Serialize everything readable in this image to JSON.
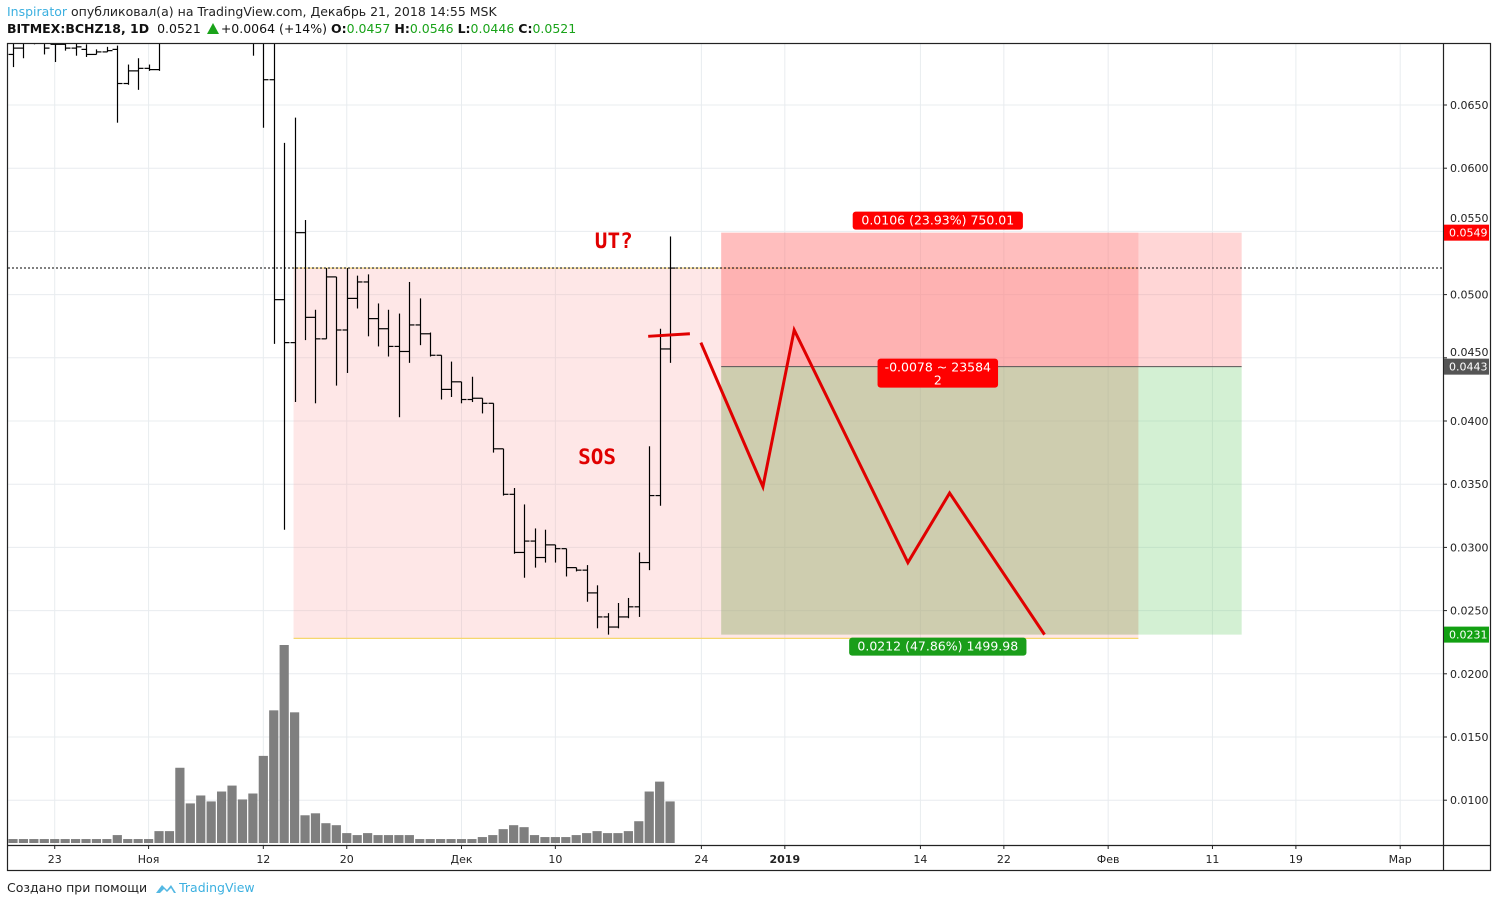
{
  "header": {
    "user": "Inspirator",
    "published_text": "опубликовал(а) на TradingView.com, Декабрь 21, 2018 14:55 MSK",
    "symbol": "BITMEX:BCHZ18, 1D",
    "last": "0.0521",
    "change": "+0.0064 (+14%)",
    "o_label": "O:",
    "o": "0.0457",
    "h_label": "H:",
    "h": "0.0546",
    "l_label": "L:",
    "l": "0.0446",
    "c_label": "C:",
    "c": "0.0521"
  },
  "footer": {
    "created_with": "Создано при помощи",
    "brand": "TradingView"
  },
  "colors": {
    "up": "#1aa31a",
    "loss": "#ff0000",
    "profit": "#1a9e1a",
    "bars": "#000000",
    "volume": "#7f7f7f",
    "drawing": "#e00000"
  },
  "chart_data": {
    "type": "ohlc",
    "interval": "1D",
    "ylim": [
      0.0058,
      0.0699
    ],
    "grid": true,
    "y_ticks": [
      "0.0650",
      "0.0600",
      "0.0550",
      "0.0500",
      "0.0450",
      "0.0400",
      "0.0350",
      "0.0300",
      "0.0250",
      "0.0200",
      "0.0150",
      "0.0100"
    ],
    "x_ticks": [
      {
        "label": "23",
        "day": 4
      },
      {
        "label": "Ноя",
        "day": 13
      },
      {
        "label": "12",
        "day": 24
      },
      {
        "label": "20",
        "day": 32
      },
      {
        "label": "Дек",
        "day": 43
      },
      {
        "label": "10",
        "day": 52
      },
      {
        "label": "24",
        "day": 66
      },
      {
        "label": "2019",
        "day": 74,
        "bold": true
      },
      {
        "label": "14",
        "day": 87
      },
      {
        "label": "22",
        "day": 95
      },
      {
        "label": "Фев",
        "day": 105
      },
      {
        "label": "11",
        "day": 115
      },
      {
        "label": "19",
        "day": 123
      },
      {
        "label": "Мар",
        "day": 133
      }
    ],
    "ohlc": [
      [
        0.069,
        0.0705,
        0.068,
        0.0695
      ],
      [
        0.0695,
        0.0705,
        0.0687,
        0.07
      ],
      [
        0.07,
        0.0702,
        0.0698,
        0.07
      ],
      [
        0.07,
        0.0705,
        0.069,
        0.0695
      ],
      [
        0.0698,
        0.0702,
        0.0684,
        0.0698
      ],
      [
        0.0698,
        0.07,
        0.0693,
        0.0695
      ],
      [
        0.0695,
        0.0699,
        0.0689,
        0.0696
      ],
      [
        0.0694,
        0.0698,
        0.0688,
        0.069
      ],
      [
        0.069,
        0.0694,
        0.069,
        0.0692
      ],
      [
        0.0692,
        0.0696,
        0.0692,
        0.0693
      ],
      [
        0.0694,
        0.0697,
        0.0636,
        0.0667
      ],
      [
        0.0667,
        0.0682,
        0.0666,
        0.0677
      ],
      [
        0.0677,
        0.0687,
        0.0662,
        0.0679
      ],
      [
        0.0679,
        0.0682,
        0.0677,
        0.0678
      ],
      [
        0.0678,
        0.0712,
        0.0677,
        0.0705
      ],
      [
        0.0705,
        0.0725,
        0.07,
        0.0718
      ],
      [
        0.0718,
        0.0735,
        0.071,
        0.0722
      ],
      [
        0.0722,
        0.073,
        0.0712,
        0.0716
      ],
      [
        0.0716,
        0.0728,
        0.0708,
        0.072
      ],
      [
        0.072,
        0.074,
        0.0715,
        0.073
      ],
      [
        0.073,
        0.0738,
        0.0712,
        0.0718
      ],
      [
        0.0718,
        0.0726,
        0.0705,
        0.0712
      ],
      [
        0.0712,
        0.0724,
        0.0702,
        0.0715
      ],
      [
        0.0715,
        0.072,
        0.0689,
        0.0712
      ],
      [
        0.0712,
        0.072,
        0.0632,
        0.067
      ],
      [
        0.067,
        0.0705,
        0.0461,
        0.0496
      ],
      [
        0.0496,
        0.062,
        0.0314,
        0.0462
      ],
      [
        0.0462,
        0.064,
        0.0415,
        0.0549
      ],
      [
        0.0549,
        0.0559,
        0.0464,
        0.0482
      ],
      [
        0.0482,
        0.0488,
        0.0414,
        0.0465
      ],
      [
        0.0465,
        0.0521,
        0.0465,
        0.0514
      ],
      [
        0.0514,
        0.0514,
        0.0428,
        0.0472
      ],
      [
        0.0472,
        0.0521,
        0.0438,
        0.0497
      ],
      [
        0.0497,
        0.0515,
        0.0489,
        0.051
      ],
      [
        0.051,
        0.0516,
        0.0467,
        0.0481
      ],
      [
        0.0481,
        0.0493,
        0.0459,
        0.0473
      ],
      [
        0.0473,
        0.0488,
        0.0451,
        0.0459
      ],
      [
        0.0459,
        0.0485,
        0.0403,
        0.0455
      ],
      [
        0.0455,
        0.051,
        0.0446,
        0.0476
      ],
      [
        0.0476,
        0.0497,
        0.046,
        0.0469
      ],
      [
        0.0469,
        0.047,
        0.0451,
        0.0452
      ],
      [
        0.0452,
        0.0452,
        0.0417,
        0.0425
      ],
      [
        0.0425,
        0.0447,
        0.0419,
        0.0431
      ],
      [
        0.0431,
        0.0431,
        0.0414,
        0.0417
      ],
      [
        0.0417,
        0.0435,
        0.0415,
        0.0418
      ],
      [
        0.0418,
        0.0418,
        0.0406,
        0.0414
      ],
      [
        0.0414,
        0.0414,
        0.0375,
        0.0378
      ],
      [
        0.0378,
        0.0378,
        0.0341,
        0.0342
      ],
      [
        0.0342,
        0.0347,
        0.0295,
        0.0296
      ],
      [
        0.0296,
        0.0334,
        0.0276,
        0.0305
      ],
      [
        0.0305,
        0.0315,
        0.0284,
        0.0292
      ],
      [
        0.0292,
        0.0314,
        0.0288,
        0.0302
      ],
      [
        0.0302,
        0.0302,
        0.0288,
        0.0299
      ],
      [
        0.0299,
        0.0299,
        0.0277,
        0.0284
      ],
      [
        0.0284,
        0.0284,
        0.0281,
        0.0282
      ],
      [
        0.0282,
        0.0286,
        0.0257,
        0.0264
      ],
      [
        0.0264,
        0.027,
        0.0236,
        0.0245
      ],
      [
        0.0245,
        0.0248,
        0.0231,
        0.0237
      ],
      [
        0.0237,
        0.0256,
        0.0236,
        0.0245
      ],
      [
        0.0245,
        0.026,
        0.0244,
        0.0253
      ],
      [
        0.0253,
        0.0296,
        0.0245,
        0.0288
      ],
      [
        0.0288,
        0.038,
        0.0282,
        0.0341
      ],
      [
        0.0341,
        0.0473,
        0.0333,
        0.0457
      ],
      [
        0.0457,
        0.0546,
        0.0446,
        0.0521
      ]
    ],
    "volume_relative": [
      2,
      2,
      2,
      2,
      2,
      2,
      2,
      2,
      2,
      2,
      4,
      2,
      2,
      2,
      6,
      6,
      38,
      20,
      24,
      21,
      26,
      29,
      22,
      25,
      44,
      67,
      100,
      66,
      14,
      15,
      10,
      9,
      5,
      4,
      5,
      4,
      4,
      4,
      4,
      2,
      2,
      2,
      2,
      2,
      2,
      3,
      4,
      7,
      9,
      8,
      4,
      3,
      3,
      3,
      4,
      5,
      6,
      5,
      5,
      6,
      11,
      26,
      31,
      21
    ],
    "last_price": 0.0521,
    "price_labels": {
      "stop": "0.0549",
      "entry": "0.0443",
      "target": "0.0231"
    },
    "position": {
      "type": "short",
      "start_day": 67.9,
      "end_day": 117.8,
      "current_day": 107.9,
      "entry": 0.0443,
      "stop": 0.0549,
      "target": 0.0231,
      "stop_label": "0.0106 (23.93%) 750.01",
      "center_label": "-0.0078 ~ 23584",
      "center_label2": "2",
      "target_label": "0.0212 (47.86%) 1499.98"
    },
    "range_box": {
      "start_day": 26.9,
      "end_day": 107.9,
      "top": 0.0521,
      "bottom": 0.0228
    },
    "annotations": [
      {
        "text": "UT?",
        "day": 57.6,
        "price": 0.0537
      },
      {
        "text": "SOS",
        "day": 56.0,
        "price": 0.0366
      }
    ],
    "projection_path": [
      [
        65.95,
        0.0462
      ],
      [
        71.9,
        0.0348
      ],
      [
        74.9,
        0.0472
      ],
      [
        85.8,
        0.0288
      ],
      [
        89.8,
        0.0343
      ],
      [
        98.9,
        0.0231
      ]
    ],
    "resistance_mark": [
      [
        60.9,
        0.0467
      ],
      [
        64.9,
        0.0469
      ]
    ]
  }
}
